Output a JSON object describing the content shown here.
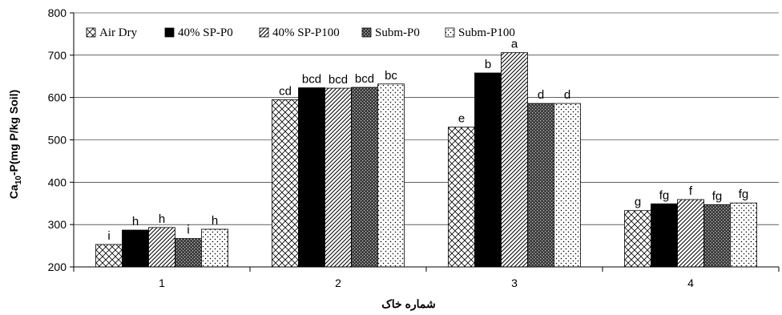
{
  "chart_data": {
    "type": "bar",
    "title": "",
    "xlabel": "شماره خاک",
    "ylabel_main": "Ca",
    "ylabel_sub": "10",
    "ylabel_rest": "-P(mg P/kg Soil)",
    "ylim": [
      200,
      800
    ],
    "yticks": [
      "200",
      "300",
      "400",
      "500",
      "600",
      "700",
      "800"
    ],
    "categories": [
      "1",
      "2",
      "3",
      "4"
    ],
    "legend_position": "top-left inside",
    "series": [
      {
        "name": "Air Dry",
        "pattern": "crosshatch",
        "values": [
          253,
          595,
          530,
          333
        ],
        "letters": [
          "i",
          "cd",
          "e",
          "g"
        ]
      },
      {
        "name": "40% SP-P0",
        "pattern": "solid-black",
        "values": [
          287,
          623,
          658,
          349
        ],
        "letters": [
          "h",
          "bcd",
          "b",
          "fg"
        ]
      },
      {
        "name": "40% SP-P100",
        "pattern": "diagonal",
        "values": [
          293,
          622,
          706,
          359
        ],
        "letters": [
          "h",
          "bcd",
          "a",
          "f"
        ]
      },
      {
        "name": "Subm-P0",
        "pattern": "dark-dots",
        "values": [
          267,
          624,
          586,
          347
        ],
        "letters": [
          "i",
          "bcd",
          "d",
          "fg"
        ]
      },
      {
        "name": "Subm-P100",
        "pattern": "light-dots",
        "values": [
          289,
          632,
          586,
          351
        ],
        "letters": [
          "h",
          "bc",
          "d",
          "fg"
        ]
      }
    ]
  }
}
